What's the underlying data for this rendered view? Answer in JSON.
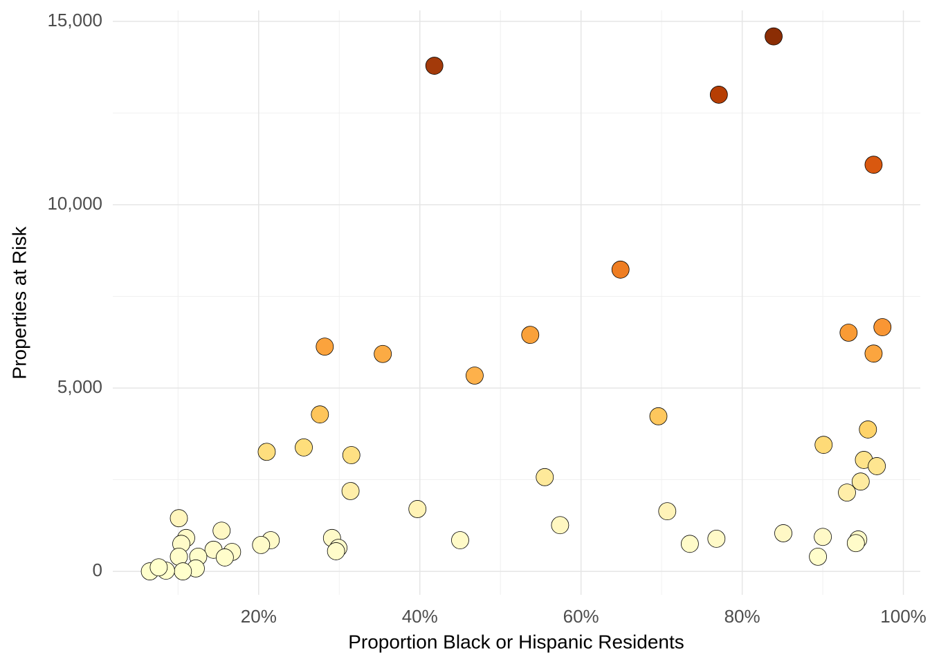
{
  "chart_data": {
    "type": "scatter",
    "x_label": "Proportion Black or Hispanic Residents",
    "y_label": "Properties at Risk",
    "x": [
      41.8,
      83.9,
      77.1,
      96.3,
      64.9,
      53.7,
      93.2,
      97.4,
      96.3,
      28.2,
      35.4,
      46.8,
      27.6,
      69.6,
      95.6,
      21.0,
      25.6,
      31.5,
      90.1,
      95.1,
      96.7,
      55.5,
      94.7,
      31.4,
      93.0,
      39.7,
      70.7,
      10.1,
      57.4,
      15.4,
      85.1,
      90.0,
      11.0,
      21.5,
      29.1,
      45.0,
      76.8,
      94.4,
      94.1,
      10.4,
      20.3,
      73.5,
      29.9,
      14.4,
      29.6,
      16.7,
      12.5,
      10.1,
      15.8,
      89.4,
      12.2,
      10.6,
      8.5,
      6.5,
      7.6
    ],
    "values": [
      13790,
      14590,
      13000,
      11090,
      8230,
      6450,
      6510,
      6660,
      5940,
      6130,
      5930,
      5340,
      4280,
      4230,
      3870,
      3260,
      3380,
      3170,
      3450,
      3040,
      2870,
      2570,
      2450,
      2190,
      2150,
      1700,
      1640,
      1450,
      1260,
      1110,
      1040,
      940,
      910,
      850,
      910,
      850,
      890,
      870,
      770,
      750,
      720,
      750,
      640,
      590,
      550,
      530,
      400,
      400,
      380,
      400,
      80,
      0,
      20,
      0,
      110
    ],
    "point_colors": [
      "#a33a0a",
      "#8b2d04",
      "#b63e04",
      "#d9580f",
      "#ee7d22",
      "#f9a13a",
      "#f99b35",
      "#f99634",
      "#fba53f",
      "#fba33d",
      "#fbab44",
      "#fdb14b",
      "#fec55b",
      "#fec75d",
      "#fed36a",
      "#fede7e",
      "#fede7b",
      "#fee083",
      "#feda77",
      "#fee38a",
      "#fee590",
      "#fee99a",
      "#feeba0",
      "#ffeea9",
      "#ffeea9",
      "#fff3b6",
      "#fff3b8",
      "#fff5bd",
      "#fff7c1",
      "#fff8c4",
      "#fff8c5",
      "#fff9c7",
      "#fffac8",
      "#fffac8",
      "#fffac8",
      "#fffac8",
      "#fffac8",
      "#fffac8",
      "#fffbc9",
      "#fffbc9",
      "#fffbc9",
      "#fffbc9",
      "#fffbca",
      "#fffbca",
      "#fffcca",
      "#fffcca",
      "#fffdcb",
      "#fffdcb",
      "#fffdcb",
      "#fffdcb",
      "#ffffcc",
      "#ffffcc",
      "#ffffcc",
      "#ffffcc",
      "#ffffcc"
    ],
    "xlim": [
      1.9,
      102.1
    ],
    "ylim": [
      -640,
      15300
    ],
    "xticks": [
      {
        "value": 20,
        "label": "20%"
      },
      {
        "value": 40,
        "label": "40%"
      },
      {
        "value": 60,
        "label": "60%"
      },
      {
        "value": 80,
        "label": "80%"
      },
      {
        "value": 100,
        "label": "100%"
      }
    ],
    "yticks": [
      0,
      {
        "value": 5000,
        "label": "5,000"
      },
      {
        "value": 10000,
        "label": "10,000"
      },
      {
        "value": 15000,
        "label": "15,000"
      }
    ],
    "x_minor_gridlines": [
      10,
      30,
      50,
      70,
      90
    ],
    "y_minor_gridlines": [
      2500,
      7500,
      12500
    ],
    "grid": true
  }
}
